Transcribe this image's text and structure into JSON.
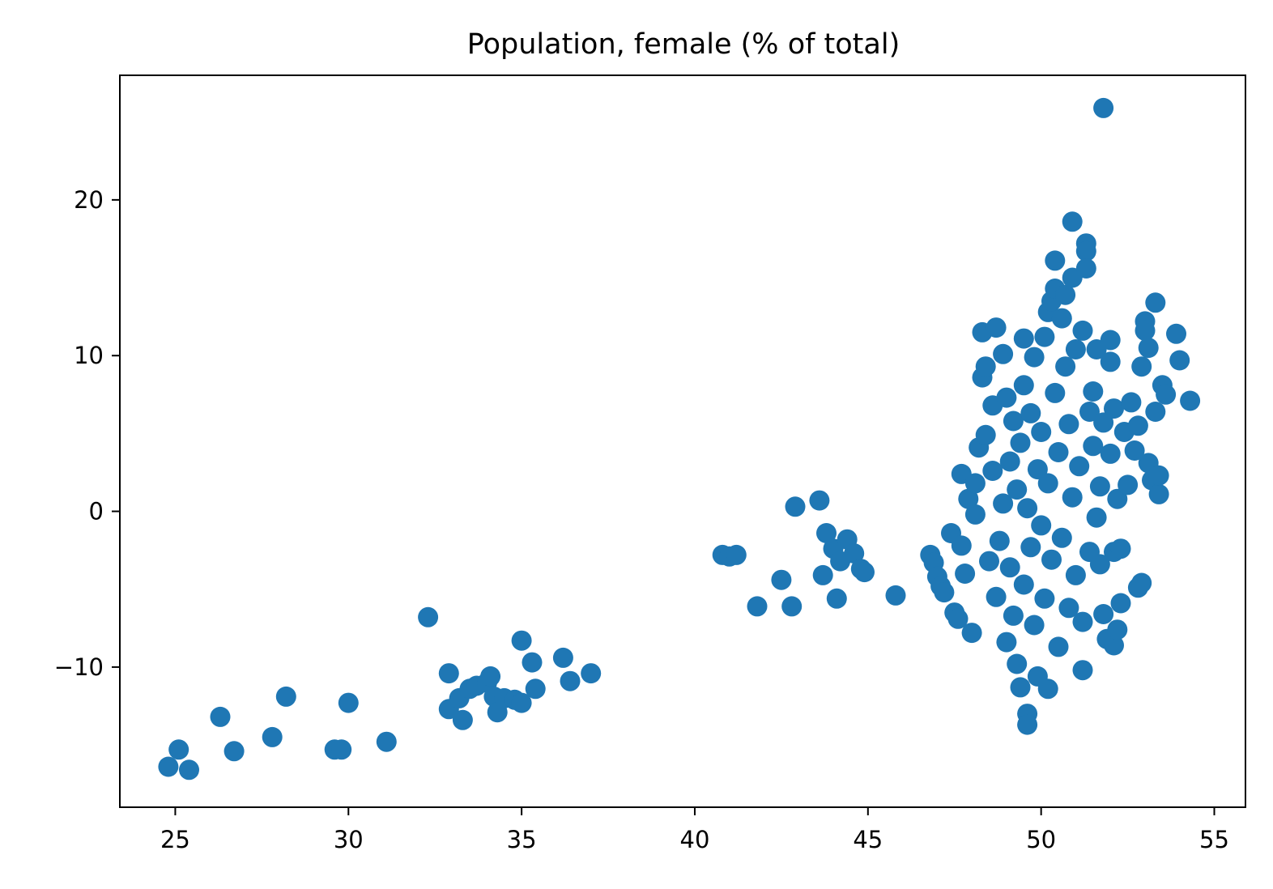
{
  "chart_data": {
    "type": "scatter",
    "title": "Population, female (% of total)",
    "xlabel": "",
    "ylabel": "",
    "xlim": [
      23.4,
      55.9
    ],
    "ylim": [
      -19.0,
      28.0
    ],
    "xticks": [
      25,
      30,
      35,
      40,
      45,
      50,
      55
    ],
    "yticks": [
      -10,
      0,
      10,
      20
    ],
    "ytick_labels": [
      "−10",
      "0",
      "10",
      "20"
    ],
    "grid": false,
    "legend": "none",
    "marker_color": "#1f77b4",
    "series": [
      {
        "points": [
          [
            24.8,
            -16.4
          ],
          [
            25.1,
            -15.3
          ],
          [
            25.4,
            -16.6
          ],
          [
            26.3,
            -13.2
          ],
          [
            26.7,
            -15.4
          ],
          [
            27.8,
            -14.5
          ],
          [
            28.2,
            -11.9
          ],
          [
            29.6,
            -15.3
          ],
          [
            29.8,
            -15.3
          ],
          [
            30.0,
            -12.3
          ],
          [
            31.1,
            -14.8
          ],
          [
            32.3,
            -6.8
          ],
          [
            32.9,
            -10.4
          ],
          [
            32.9,
            -12.7
          ],
          [
            33.2,
            -12.0
          ],
          [
            33.3,
            -13.4
          ],
          [
            33.5,
            -11.4
          ],
          [
            33.7,
            -11.2
          ],
          [
            34.0,
            -11.0
          ],
          [
            34.1,
            -10.6
          ],
          [
            34.2,
            -11.9
          ],
          [
            34.3,
            -12.9
          ],
          [
            34.5,
            -12.0
          ],
          [
            34.8,
            -12.1
          ],
          [
            35.0,
            -12.3
          ],
          [
            35.0,
            -8.3
          ],
          [
            35.3,
            -9.7
          ],
          [
            35.4,
            -11.4
          ],
          [
            36.2,
            -9.4
          ],
          [
            36.4,
            -10.9
          ],
          [
            37.0,
            -10.4
          ],
          [
            40.8,
            -2.8
          ],
          [
            41.0,
            -2.9
          ],
          [
            41.2,
            -2.8
          ],
          [
            41.8,
            -6.1
          ],
          [
            42.5,
            -4.4
          ],
          [
            42.8,
            -6.1
          ],
          [
            42.9,
            0.3
          ],
          [
            43.6,
            0.7
          ],
          [
            43.8,
            -1.4
          ],
          [
            43.7,
            -4.1
          ],
          [
            44.0,
            -2.4
          ],
          [
            44.2,
            -3.2
          ],
          [
            44.1,
            -5.6
          ],
          [
            44.4,
            -1.8
          ],
          [
            44.6,
            -2.7
          ],
          [
            44.8,
            -3.7
          ],
          [
            44.9,
            -3.9
          ],
          [
            45.8,
            -5.4
          ],
          [
            46.8,
            -2.8
          ],
          [
            46.9,
            -3.3
          ],
          [
            47.0,
            -4.2
          ],
          [
            47.1,
            -4.8
          ],
          [
            47.2,
            -5.2
          ],
          [
            47.4,
            -1.4
          ],
          [
            47.5,
            -6.5
          ],
          [
            47.6,
            -6.9
          ],
          [
            47.7,
            -2.2
          ],
          [
            47.8,
            -4.0
          ],
          [
            47.7,
            2.4
          ],
          [
            47.9,
            0.8
          ],
          [
            48.0,
            -7.8
          ],
          [
            48.1,
            -0.2
          ],
          [
            48.1,
            1.8
          ],
          [
            48.2,
            4.1
          ],
          [
            48.3,
            8.6
          ],
          [
            48.3,
            11.5
          ],
          [
            48.4,
            4.9
          ],
          [
            48.4,
            9.3
          ],
          [
            48.5,
            -3.2
          ],
          [
            48.6,
            6.8
          ],
          [
            48.6,
            2.6
          ],
          [
            48.7,
            -5.5
          ],
          [
            48.7,
            11.8
          ],
          [
            48.8,
            -1.9
          ],
          [
            48.9,
            10.1
          ],
          [
            48.9,
            0.5
          ],
          [
            49.0,
            7.3
          ],
          [
            49.0,
            -8.4
          ],
          [
            49.1,
            -3.6
          ],
          [
            49.1,
            3.2
          ],
          [
            49.2,
            5.8
          ],
          [
            49.2,
            -6.7
          ],
          [
            49.3,
            1.4
          ],
          [
            49.3,
            -9.8
          ],
          [
            49.4,
            -11.3
          ],
          [
            49.4,
            4.4
          ],
          [
            49.5,
            11.1
          ],
          [
            49.5,
            -4.7
          ],
          [
            49.5,
            8.1
          ],
          [
            49.6,
            -13.0
          ],
          [
            49.6,
            -13.7
          ],
          [
            49.6,
            0.2
          ],
          [
            49.7,
            -2.3
          ],
          [
            49.7,
            6.3
          ],
          [
            49.8,
            -7.3
          ],
          [
            49.8,
            9.9
          ],
          [
            49.9,
            2.7
          ],
          [
            49.9,
            -10.6
          ],
          [
            50.0,
            -0.9
          ],
          [
            50.0,
            5.1
          ],
          [
            50.1,
            11.2
          ],
          [
            50.1,
            -5.6
          ],
          [
            50.2,
            12.8
          ],
          [
            50.2,
            1.8
          ],
          [
            50.2,
            -11.4
          ],
          [
            50.3,
            13.5
          ],
          [
            50.3,
            -3.1
          ],
          [
            50.4,
            16.1
          ],
          [
            50.4,
            7.6
          ],
          [
            50.4,
            14.3
          ],
          [
            50.5,
            -8.7
          ],
          [
            50.5,
            3.8
          ],
          [
            50.6,
            12.4
          ],
          [
            50.6,
            -1.7
          ],
          [
            50.7,
            9.3
          ],
          [
            50.7,
            13.9
          ],
          [
            50.8,
            -6.2
          ],
          [
            50.8,
            5.6
          ],
          [
            50.9,
            15.0
          ],
          [
            50.9,
            0.9
          ],
          [
            50.9,
            18.6
          ],
          [
            51.0,
            -4.1
          ],
          [
            51.0,
            10.4
          ],
          [
            51.1,
            2.9
          ],
          [
            51.2,
            11.6
          ],
          [
            51.2,
            -7.1
          ],
          [
            51.2,
            -10.2
          ],
          [
            51.3,
            17.2
          ],
          [
            51.3,
            16.7
          ],
          [
            51.3,
            15.6
          ],
          [
            51.4,
            6.4
          ],
          [
            51.4,
            -2.6
          ],
          [
            51.5,
            4.2
          ],
          [
            51.5,
            7.7
          ],
          [
            51.6,
            -0.4
          ],
          [
            51.6,
            10.4
          ],
          [
            51.7,
            1.6
          ],
          [
            51.7,
            -3.4
          ],
          [
            51.8,
            25.9
          ],
          [
            51.8,
            5.7
          ],
          [
            51.8,
            -6.6
          ],
          [
            51.9,
            -8.2
          ],
          [
            52.0,
            11.0
          ],
          [
            52.0,
            9.6
          ],
          [
            52.0,
            3.7
          ],
          [
            52.1,
            6.6
          ],
          [
            52.1,
            -2.6
          ],
          [
            52.1,
            -8.6
          ],
          [
            52.2,
            -7.6
          ],
          [
            52.2,
            0.8
          ],
          [
            52.3,
            -5.9
          ],
          [
            52.3,
            -2.4
          ],
          [
            52.4,
            5.1
          ],
          [
            52.5,
            1.7
          ],
          [
            52.6,
            7.0
          ],
          [
            52.7,
            3.9
          ],
          [
            52.8,
            -4.9
          ],
          [
            52.8,
            5.5
          ],
          [
            52.9,
            -4.6
          ],
          [
            52.9,
            9.3
          ],
          [
            53.0,
            12.2
          ],
          [
            53.0,
            11.6
          ],
          [
            53.1,
            10.5
          ],
          [
            53.1,
            3.1
          ],
          [
            53.2,
            2.0
          ],
          [
            53.3,
            13.4
          ],
          [
            53.3,
            6.4
          ],
          [
            53.4,
            1.1
          ],
          [
            53.4,
            2.3
          ],
          [
            53.5,
            8.1
          ],
          [
            53.6,
            7.5
          ],
          [
            53.9,
            11.4
          ],
          [
            54.0,
            9.7
          ],
          [
            54.3,
            7.1
          ]
        ]
      }
    ]
  }
}
